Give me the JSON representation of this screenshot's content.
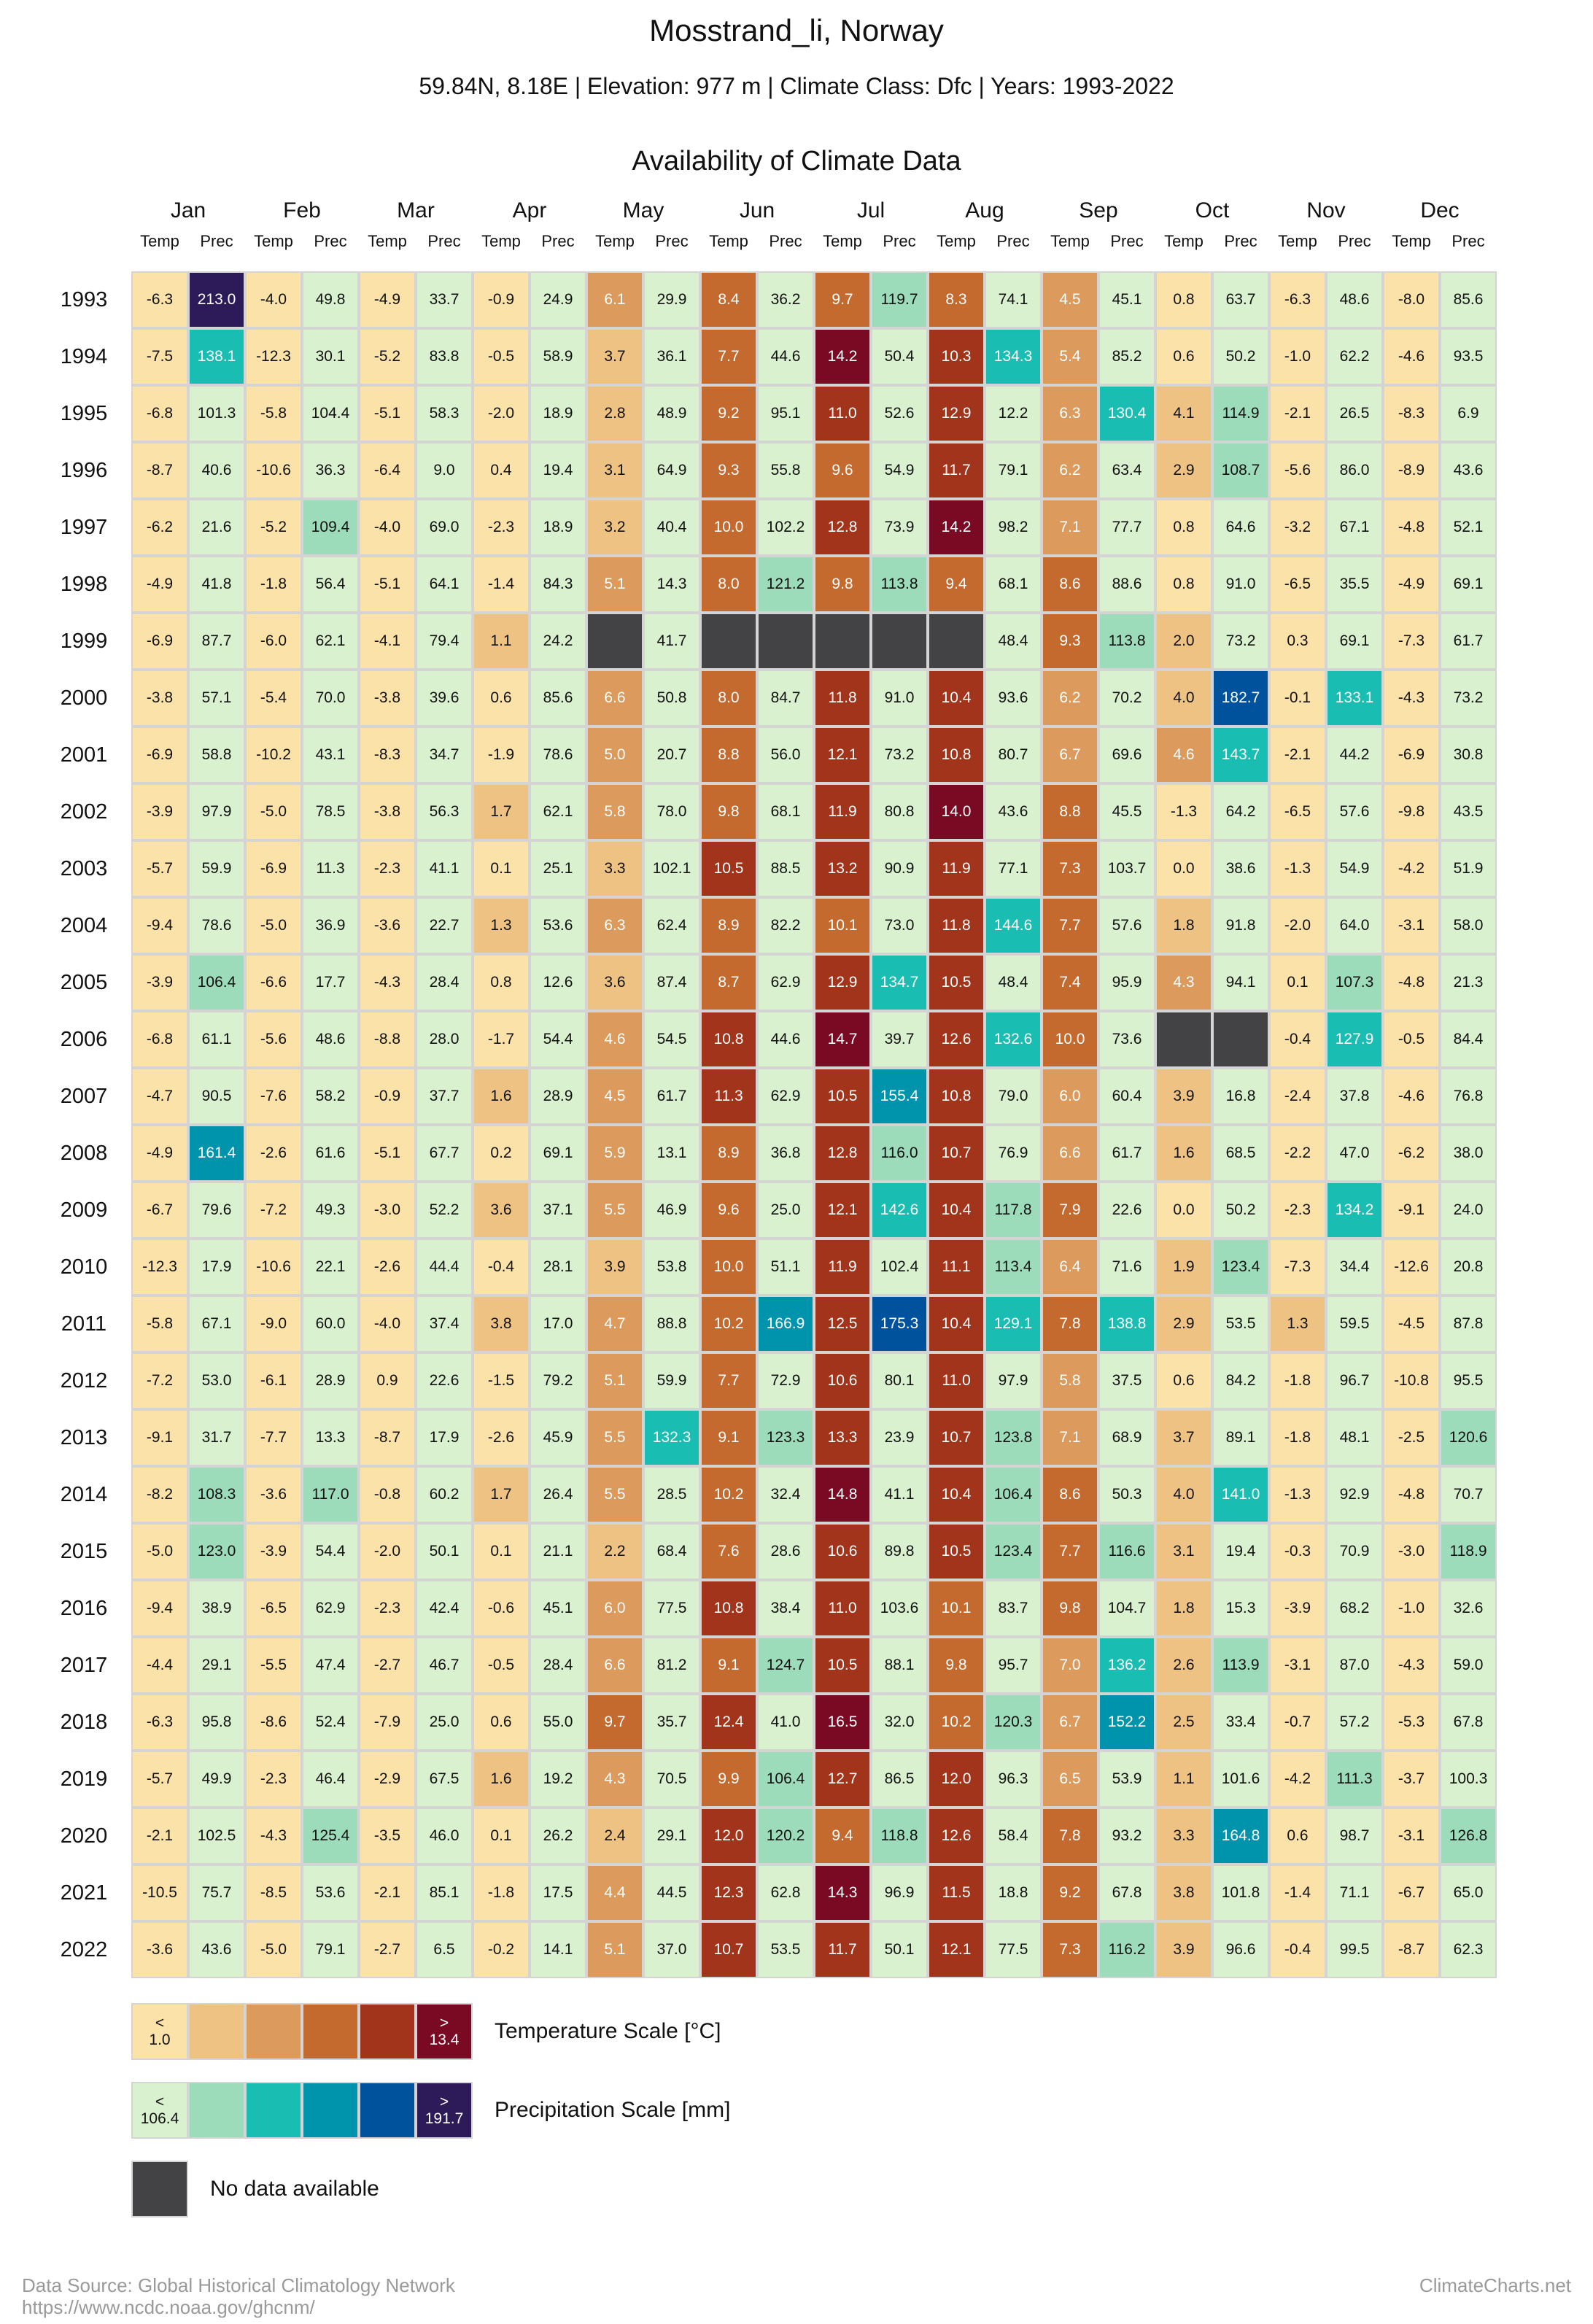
{
  "header": {
    "title": "Mosstrand_li, Norway",
    "subtitle": "59.84N, 8.18E | Elevation: 977 m | Climate Class: Dfc | Years: 1993-2022",
    "section_title": "Availability of Climate Data"
  },
  "chart_data": {
    "type": "heatmap",
    "title": "Availability of Climate Data",
    "months": [
      "Jan",
      "Feb",
      "Mar",
      "Apr",
      "May",
      "Jun",
      "Jul",
      "Aug",
      "Sep",
      "Oct",
      "Nov",
      "Dec"
    ],
    "sub_columns": [
      "Temp",
      "Prec"
    ],
    "years": [
      1993,
      1994,
      1995,
      1996,
      1997,
      1998,
      1999,
      2000,
      2001,
      2002,
      2003,
      2004,
      2005,
      2006,
      2007,
      2008,
      2009,
      2010,
      2011,
      2012,
      2013,
      2014,
      2015,
      2016,
      2017,
      2018,
      2019,
      2020,
      2021,
      2022
    ],
    "temperature": [
      [
        -6.3,
        -4.0,
        -4.9,
        -0.9,
        6.1,
        8.4,
        9.7,
        8.3,
        4.5,
        0.8,
        -6.3,
        -8.0
      ],
      [
        -7.5,
        -12.3,
        -5.2,
        -0.5,
        3.7,
        7.7,
        14.2,
        10.3,
        5.4,
        0.6,
        -1.0,
        -4.6
      ],
      [
        -6.8,
        -5.8,
        -5.1,
        -2.0,
        2.8,
        9.2,
        11.0,
        12.9,
        6.3,
        4.1,
        -2.1,
        -8.3
      ],
      [
        -8.7,
        -10.6,
        -6.4,
        0.4,
        3.1,
        9.3,
        9.6,
        11.7,
        6.2,
        2.9,
        -5.6,
        -8.9
      ],
      [
        -6.2,
        -5.2,
        -4.0,
        -2.3,
        3.2,
        10.0,
        12.8,
        14.2,
        7.1,
        0.8,
        -3.2,
        -4.8
      ],
      [
        -4.9,
        -1.8,
        -5.1,
        -1.4,
        5.1,
        8.0,
        9.8,
        9.4,
        8.6,
        0.8,
        -6.5,
        -4.9
      ],
      [
        -6.9,
        -6.0,
        -4.1,
        1.1,
        null,
        null,
        null,
        null,
        9.3,
        2.0,
        0.3,
        -7.3
      ],
      [
        -3.8,
        -5.4,
        -3.8,
        0.6,
        6.6,
        8.0,
        11.8,
        10.4,
        6.2,
        4.0,
        -0.1,
        -4.3
      ],
      [
        -6.9,
        -10.2,
        -8.3,
        -1.9,
        5.0,
        8.8,
        12.1,
        10.8,
        6.7,
        4.6,
        -2.1,
        -6.9
      ],
      [
        -3.9,
        -5.0,
        -3.8,
        1.7,
        5.8,
        9.8,
        11.9,
        14.0,
        8.8,
        -1.3,
        -6.5,
        -9.8
      ],
      [
        -5.7,
        -6.9,
        -2.3,
        0.1,
        3.3,
        10.5,
        13.2,
        11.9,
        7.3,
        0.0,
        -1.3,
        -4.2
      ],
      [
        -9.4,
        -5.0,
        -3.6,
        1.3,
        6.3,
        8.9,
        10.1,
        11.8,
        7.7,
        1.8,
        -2.0,
        -3.1
      ],
      [
        -3.9,
        -6.6,
        -4.3,
        0.8,
        3.6,
        8.7,
        12.9,
        10.5,
        7.4,
        4.3,
        0.1,
        -4.8
      ],
      [
        -6.8,
        -5.6,
        -8.8,
        -1.7,
        4.6,
        10.8,
        14.7,
        12.6,
        10.0,
        null,
        -0.4,
        -0.5
      ],
      [
        -4.7,
        -7.6,
        -0.9,
        1.6,
        4.5,
        11.3,
        10.5,
        10.8,
        6.0,
        3.9,
        -2.4,
        -4.6
      ],
      [
        -4.9,
        -2.6,
        -5.1,
        0.2,
        5.9,
        8.9,
        12.8,
        10.7,
        6.6,
        1.6,
        -2.2,
        -6.2
      ],
      [
        -6.7,
        -7.2,
        -3.0,
        3.6,
        5.5,
        9.6,
        12.1,
        10.4,
        7.9,
        0.0,
        -2.3,
        -9.1
      ],
      [
        -12.3,
        -10.6,
        -2.6,
        -0.4,
        3.9,
        10.0,
        11.9,
        11.1,
        6.4,
        1.9,
        -7.3,
        -12.6
      ],
      [
        -5.8,
        -9.0,
        -4.0,
        3.8,
        4.7,
        10.2,
        12.5,
        10.4,
        7.8,
        2.9,
        1.3,
        -4.5
      ],
      [
        -7.2,
        -6.1,
        0.9,
        -1.5,
        5.1,
        7.7,
        10.6,
        11.0,
        5.8,
        0.6,
        -1.8,
        -10.8
      ],
      [
        -9.1,
        -7.7,
        -8.7,
        -2.6,
        5.5,
        9.1,
        13.3,
        10.7,
        7.1,
        3.7,
        -1.8,
        -2.5
      ],
      [
        -8.2,
        -3.6,
        -0.8,
        1.7,
        5.5,
        10.2,
        14.8,
        10.4,
        8.6,
        4.0,
        -1.3,
        -4.8
      ],
      [
        -5.0,
        -3.9,
        -2.0,
        0.1,
        2.2,
        7.6,
        10.6,
        10.5,
        7.7,
        3.1,
        -0.3,
        -3.0
      ],
      [
        -9.4,
        -6.5,
        -2.3,
        -0.6,
        6.0,
        10.8,
        11.0,
        10.1,
        9.8,
        1.8,
        -3.9,
        -1.0
      ],
      [
        -4.4,
        -5.5,
        -2.7,
        -0.5,
        6.6,
        9.1,
        10.5,
        9.8,
        7.0,
        2.6,
        -3.1,
        -4.3
      ],
      [
        -6.3,
        -8.6,
        -7.9,
        0.6,
        9.7,
        12.4,
        16.5,
        10.2,
        6.7,
        2.5,
        -0.7,
        -5.3
      ],
      [
        -5.7,
        -2.3,
        -2.9,
        1.6,
        4.3,
        9.9,
        12.7,
        12.0,
        6.5,
        1.1,
        -4.2,
        -3.7
      ],
      [
        -2.1,
        -4.3,
        -3.5,
        0.1,
        2.4,
        12.0,
        9.4,
        12.6,
        7.8,
        3.3,
        0.6,
        -3.1
      ],
      [
        -10.5,
        -8.5,
        -2.1,
        -1.8,
        4.4,
        12.3,
        14.3,
        11.5,
        9.2,
        3.8,
        -1.4,
        -6.7
      ],
      [
        -3.6,
        -5.0,
        -2.7,
        -0.2,
        5.1,
        10.7,
        11.7,
        12.1,
        7.3,
        3.9,
        -0.4,
        -8.7
      ]
    ],
    "precipitation": [
      [
        213.0,
        49.8,
        33.7,
        24.9,
        29.9,
        36.2,
        119.7,
        74.1,
        45.1,
        63.7,
        48.6,
        85.6
      ],
      [
        138.1,
        30.1,
        83.8,
        58.9,
        36.1,
        44.6,
        50.4,
        134.3,
        85.2,
        50.2,
        62.2,
        93.5
      ],
      [
        101.3,
        104.4,
        58.3,
        18.9,
        48.9,
        95.1,
        52.6,
        12.2,
        130.4,
        114.9,
        26.5,
        6.9
      ],
      [
        40.6,
        36.3,
        9.0,
        19.4,
        64.9,
        55.8,
        54.9,
        79.1,
        63.4,
        108.7,
        86.0,
        43.6
      ],
      [
        21.6,
        109.4,
        69.0,
        18.9,
        40.4,
        102.2,
        73.9,
        98.2,
        77.7,
        64.6,
        67.1,
        52.1
      ],
      [
        41.8,
        56.4,
        64.1,
        84.3,
        14.3,
        121.2,
        113.8,
        68.1,
        88.6,
        91.0,
        35.5,
        69.1
      ],
      [
        87.7,
        62.1,
        79.4,
        24.2,
        41.7,
        null,
        null,
        48.4,
        113.8,
        73.2,
        69.1,
        61.7
      ],
      [
        57.1,
        70.0,
        39.6,
        85.6,
        50.8,
        84.7,
        91.0,
        93.6,
        70.2,
        182.7,
        133.1,
        73.2
      ],
      [
        58.8,
        43.1,
        34.7,
        78.6,
        20.7,
        56.0,
        73.2,
        80.7,
        69.6,
        143.7,
        44.2,
        30.8
      ],
      [
        97.9,
        78.5,
        56.3,
        62.1,
        78.0,
        68.1,
        80.8,
        43.6,
        45.5,
        64.2,
        57.6,
        43.5
      ],
      [
        59.9,
        11.3,
        41.1,
        25.1,
        102.1,
        88.5,
        90.9,
        77.1,
        103.7,
        38.6,
        54.9,
        51.9
      ],
      [
        78.6,
        36.9,
        22.7,
        53.6,
        62.4,
        82.2,
        73.0,
        144.6,
        57.6,
        91.8,
        64.0,
        58.0
      ],
      [
        106.4,
        17.7,
        28.4,
        12.6,
        87.4,
        62.9,
        134.7,
        48.4,
        95.9,
        94.1,
        107.3,
        21.3
      ],
      [
        61.1,
        48.6,
        28.0,
        54.4,
        54.5,
        44.6,
        39.7,
        132.6,
        73.6,
        null,
        127.9,
        84.4
      ],
      [
        90.5,
        58.2,
        37.7,
        28.9,
        61.7,
        62.9,
        155.4,
        79.0,
        60.4,
        16.8,
        37.8,
        76.8
      ],
      [
        161.4,
        61.6,
        67.7,
        69.1,
        13.1,
        36.8,
        116.0,
        76.9,
        61.7,
        68.5,
        47.0,
        38.0
      ],
      [
        79.6,
        49.3,
        52.2,
        37.1,
        46.9,
        25.0,
        142.6,
        117.8,
        22.6,
        50.2,
        134.2,
        24.0
      ],
      [
        17.9,
        22.1,
        44.4,
        28.1,
        53.8,
        51.1,
        102.4,
        113.4,
        71.6,
        123.4,
        34.4,
        20.8
      ],
      [
        67.1,
        60.0,
        37.4,
        17.0,
        88.8,
        166.9,
        175.3,
        129.1,
        138.8,
        53.5,
        59.5,
        87.8
      ],
      [
        53.0,
        28.9,
        22.6,
        79.2,
        59.9,
        72.9,
        80.1,
        97.9,
        37.5,
        84.2,
        96.7,
        95.5
      ],
      [
        31.7,
        13.3,
        17.9,
        45.9,
        132.3,
        123.3,
        23.9,
        123.8,
        68.9,
        89.1,
        48.1,
        120.6
      ],
      [
        108.3,
        117.0,
        60.2,
        26.4,
        28.5,
        32.4,
        41.1,
        106.4,
        50.3,
        141.0,
        92.9,
        70.7
      ],
      [
        123.0,
        54.4,
        50.1,
        21.1,
        68.4,
        28.6,
        89.8,
        123.4,
        116.6,
        19.4,
        70.9,
        118.9
      ],
      [
        38.9,
        62.9,
        42.4,
        45.1,
        77.5,
        38.4,
        103.6,
        83.7,
        104.7,
        15.3,
        68.2,
        32.6
      ],
      [
        29.1,
        47.4,
        46.7,
        28.4,
        81.2,
        124.7,
        88.1,
        95.7,
        136.2,
        113.9,
        87.0,
        59.0
      ],
      [
        95.8,
        52.4,
        25.0,
        55.0,
        35.7,
        41.0,
        32.0,
        120.3,
        152.2,
        33.4,
        57.2,
        67.8
      ],
      [
        49.9,
        46.4,
        67.5,
        19.2,
        70.5,
        106.4,
        86.5,
        96.3,
        53.9,
        101.6,
        111.3,
        100.3
      ],
      [
        102.5,
        125.4,
        46.0,
        26.2,
        29.1,
        120.2,
        118.8,
        58.4,
        93.2,
        164.8,
        98.7,
        126.8
      ],
      [
        75.7,
        53.6,
        85.1,
        17.5,
        44.5,
        62.8,
        96.9,
        18.8,
        67.8,
        101.8,
        71.1,
        65.0
      ],
      [
        43.6,
        79.1,
        6.5,
        14.1,
        37.0,
        53.5,
        50.1,
        77.5,
        116.2,
        96.6,
        99.5,
        62.3
      ]
    ],
    "temperature_scale": {
      "min": 1.0,
      "max": 13.4,
      "colors": [
        "#fbe2a8",
        "#eec283",
        "#dc9a5c",
        "#c56a2f",
        "#a1341a",
        "#7a0a24"
      ],
      "labels": [
        "<\n1.0",
        "",
        "",
        "",
        "",
        ">\n13.4"
      ],
      "title": "Temperature Scale [°C]"
    },
    "precipitation_scale": {
      "min": 106.4,
      "max": 191.7,
      "colors": [
        "#d9f1ce",
        "#9cdcba",
        "#19bdb1",
        "#0093ac",
        "#00529c",
        "#2d1b59"
      ],
      "labels": [
        "<\n106.4",
        "",
        "",
        "",
        "",
        ">\n191.7"
      ],
      "title": "Precipitation Scale [mm]"
    },
    "no_data_color": "#434244",
    "no_data_label": "No data available"
  },
  "footer": {
    "source_line1": "Data Source: Global Historical Climatology Network",
    "source_line2": "https://www.ncdc.noaa.gov/ghcnm/",
    "brand": "ClimateCharts.net"
  }
}
